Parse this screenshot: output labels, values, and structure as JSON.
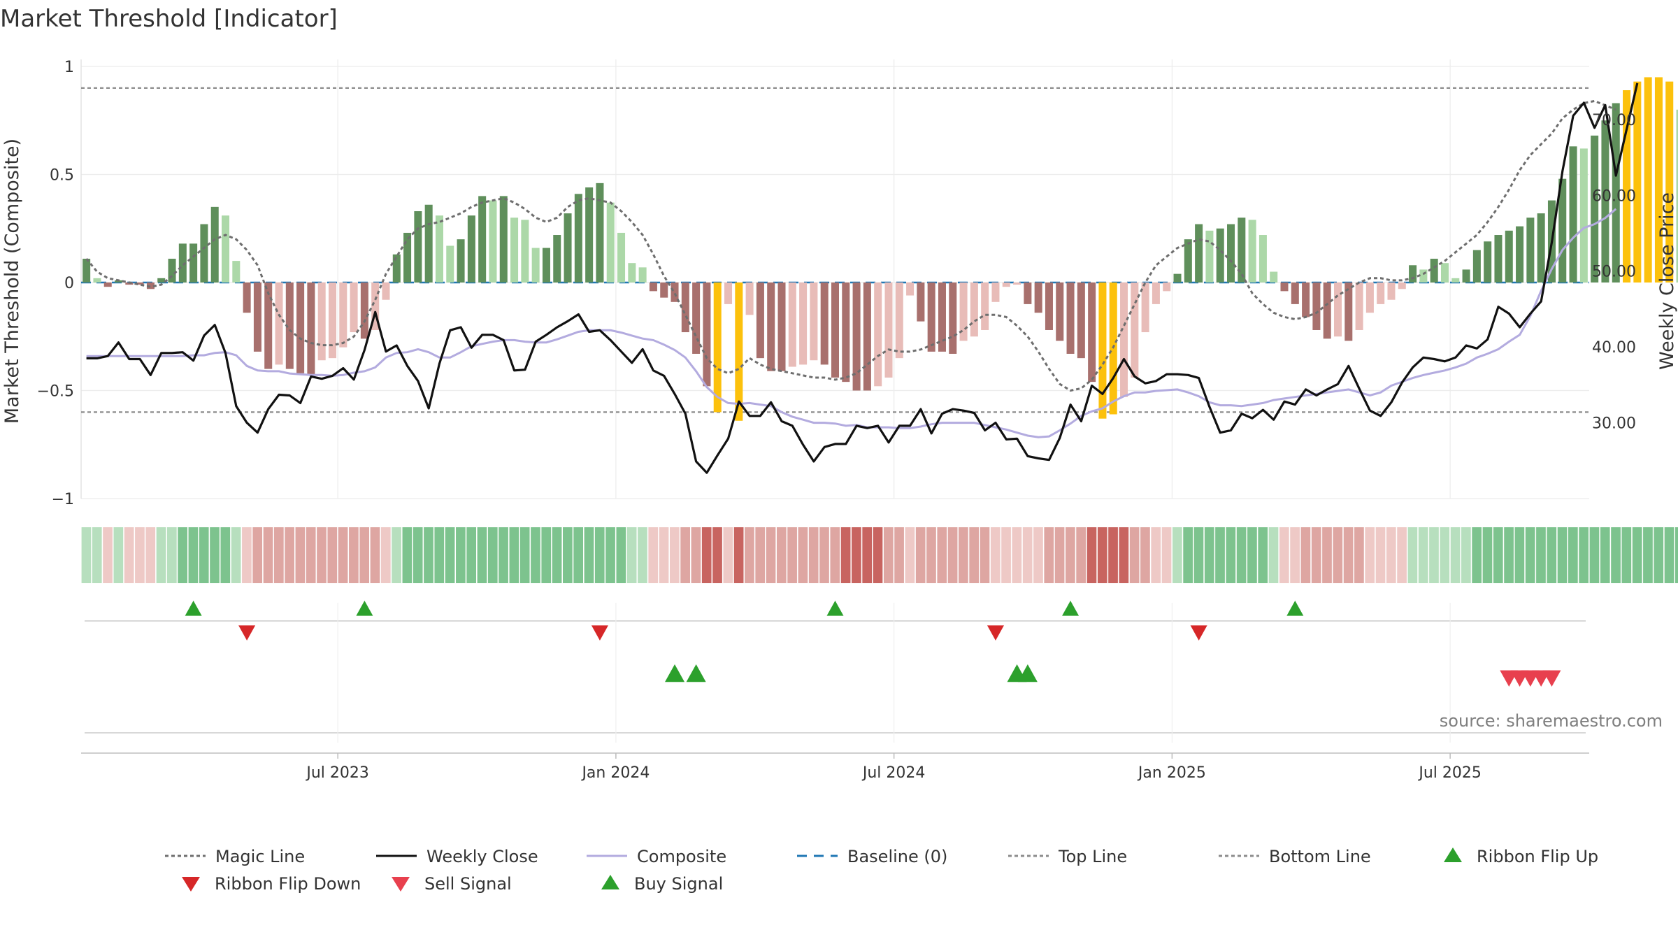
{
  "chart_data": {
    "type": "bar",
    "title": "Market Threshold [Indicator]",
    "ylabel_left": "Market Threshold (Composite)",
    "ylabel_right": "Weekly Close Price",
    "source": "source: sharemaestro.com",
    "left_axis": {
      "ylim": [
        -1,
        1
      ],
      "ticks": [
        {
          "v": 1,
          "label": "1"
        },
        {
          "v": 0.5,
          "label": "0.5"
        },
        {
          "v": 0,
          "label": "0"
        },
        {
          "v": -0.5,
          "label": "−0.5"
        },
        {
          "v": -1,
          "label": "−1"
        }
      ]
    },
    "right_axis": {
      "ylim": [
        20,
        77
      ],
      "ticks": [
        {
          "v": 70,
          "label": "70.00"
        },
        {
          "v": 60,
          "label": "60.00"
        },
        {
          "v": 50,
          "label": "50.00"
        },
        {
          "v": 40,
          "label": "40.00"
        },
        {
          "v": 30,
          "label": "30.00"
        }
      ]
    },
    "x_ticks": [
      "Jul 2023",
      "Jan 2024",
      "Jul 2024",
      "Jan 2025",
      "Jul 2025"
    ],
    "x_tick_weeks": [
      24,
      50,
      76,
      102,
      128
    ],
    "weeks": 141,
    "top_line": 0.9,
    "bottom_line": -0.6,
    "baseline": 0,
    "composite_values": [
      0.11,
      0.02,
      -0.02,
      0.01,
      -0.01,
      -0.01,
      -0.03,
      0.02,
      0.11,
      0.18,
      0.18,
      0.27,
      0.35,
      0.31,
      0.1,
      -0.14,
      -0.32,
      -0.4,
      -0.38,
      -0.4,
      -0.42,
      -0.43,
      -0.36,
      -0.35,
      -0.3,
      -0.23,
      -0.26,
      -0.22,
      -0.08,
      0.13,
      0.23,
      0.33,
      0.36,
      0.31,
      0.17,
      0.2,
      0.31,
      0.4,
      0.38,
      0.4,
      0.3,
      0.29,
      0.16,
      0.16,
      0.22,
      0.32,
      0.41,
      0.44,
      0.46,
      0.37,
      0.23,
      0.09,
      0.07,
      -0.04,
      -0.07,
      -0.09,
      -0.23,
      -0.33,
      -0.48,
      -0.6,
      -0.1,
      -0.64,
      -0.15,
      -0.35,
      -0.41,
      -0.41,
      -0.39,
      -0.38,
      -0.36,
      -0.38,
      -0.44,
      -0.46,
      -0.5,
      -0.5,
      -0.48,
      -0.44,
      -0.35,
      -0.06,
      -0.18,
      -0.32,
      -0.32,
      -0.33,
      -0.27,
      -0.25,
      -0.22,
      -0.09,
      -0.02,
      -0.01,
      -0.1,
      -0.14,
      -0.22,
      -0.27,
      -0.33,
      -0.35,
      -0.46,
      -0.63,
      -0.61,
      -0.53,
      -0.44,
      -0.23,
      -0.1,
      -0.04,
      0.04,
      0.2,
      0.27,
      0.24,
      0.25,
      0.27,
      0.3,
      0.29,
      0.22,
      0.05,
      -0.04,
      -0.1,
      -0.16,
      -0.22,
      -0.26,
      -0.25,
      -0.27,
      -0.22,
      -0.14,
      -0.1,
      -0.08,
      -0.03,
      0.08,
      0.06,
      0.11,
      0.09,
      0.02,
      0.06,
      0.15,
      0.19,
      0.22,
      0.24,
      0.26,
      0.3,
      0.32,
      0.38,
      0.48,
      0.63,
      0.62,
      0.68,
      0.75,
      0.83,
      0.89,
      0.93,
      0.95,
      0.95,
      0.93,
      0.8,
      0.73
    ],
    "weekly_close": [
      38.5,
      38.5,
      38.8,
      40.6,
      38.4,
      38.4,
      36.3,
      39.2,
      39.2,
      39.3,
      38.2,
      41.5,
      42.9,
      39.2,
      32.2,
      30.0,
      28.7,
      31.8,
      33.7,
      33.6,
      32.6,
      36.1,
      35.8,
      36.2,
      37.2,
      35.7,
      39.6,
      44.6,
      39.4,
      40.2,
      37.5,
      35.5,
      31.9,
      37.8,
      42.2,
      42.6,
      39.9,
      41.6,
      41.6,
      40.9,
      36.9,
      37.0,
      40.7,
      41.6,
      42.6,
      43.4,
      44.3,
      42.0,
      42.2,
      40.9,
      39.4,
      37.9,
      39.7,
      36.9,
      36.2,
      33.8,
      31.2,
      24.9,
      23.4,
      25.7,
      27.9,
      32.8,
      30.9,
      30.9,
      32.7,
      30.2,
      29.6,
      27.1,
      24.9,
      26.8,
      27.2,
      27.2,
      29.6,
      29.3,
      29.6,
      27.4,
      29.6,
      29.6,
      31.8,
      28.6,
      31.2,
      31.8,
      31.6,
      31.3,
      29.0,
      30.0,
      27.8,
      27.9,
      25.6,
      25.3,
      25.1,
      28.0,
      32.4,
      30.2,
      34.9,
      33.8,
      35.9,
      38.4,
      36.1,
      35.2,
      35.5,
      36.4,
      36.4,
      36.3,
      35.9,
      32.1,
      28.7,
      29.0,
      31.2,
      30.6,
      31.7,
      30.4,
      32.8,
      32.4,
      34.4,
      33.6,
      34.4,
      35.1,
      37.5,
      34.5,
      31.6,
      30.9,
      32.7,
      35.3,
      37.3,
      38.6,
      38.4,
      38.1,
      38.6,
      40.2,
      39.8,
      41.0,
      45.3,
      44.4,
      42.6,
      44.4,
      46.0,
      53.8,
      63.2,
      70.5,
      72.2,
      68.9,
      71.9,
      62.6,
      68.7,
      74.8
    ],
    "composite_line_price": [
      38.8,
      38.8,
      38.8,
      38.8,
      38.8,
      38.8,
      38.8,
      38.8,
      38.8,
      38.8,
      38.9,
      38.9,
      39.2,
      39.3,
      38.9,
      37.5,
      36.9,
      36.8,
      36.8,
      36.5,
      36.4,
      36.3,
      36.3,
      36.2,
      36.3,
      36.6,
      36.8,
      37.3,
      38.6,
      39.2,
      39.3,
      39.7,
      39.3,
      38.6,
      38.6,
      39.3,
      40.1,
      40.4,
      40.7,
      40.9,
      40.9,
      40.7,
      40.6,
      40.6,
      41.0,
      41.5,
      42.0,
      42.2,
      42.2,
      42.2,
      41.9,
      41.5,
      41.1,
      40.9,
      40.3,
      39.6,
      38.6,
      36.8,
      34.7,
      33.4,
      32.6,
      32.5,
      32.6,
      32.4,
      32.2,
      31.4,
      30.8,
      30.4,
      30.0,
      30.0,
      29.9,
      29.6,
      29.7,
      29.4,
      29.4,
      29.4,
      29.3,
      29.3,
      29.5,
      29.8,
      30.0,
      30.0,
      30.0,
      30.0,
      29.7,
      29.4,
      29.1,
      28.7,
      28.3,
      28.1,
      28.2,
      29.0,
      29.9,
      30.9,
      31.5,
      31.9,
      32.8,
      33.5,
      34.0,
      34.0,
      34.2,
      34.3,
      34.4,
      34.0,
      33.5,
      32.7,
      32.3,
      32.3,
      32.2,
      32.4,
      32.6,
      33.0,
      33.2,
      33.4,
      33.6,
      33.8,
      34.0,
      34.2,
      34.4,
      34.0,
      33.6,
      34.0,
      34.9,
      35.4,
      35.9,
      36.3,
      36.6,
      36.9,
      37.3,
      37.8,
      38.6,
      39.1,
      39.7,
      40.7,
      41.6,
      44.1,
      47.4,
      50.3,
      52.8,
      54.4,
      55.7,
      56.2,
      57.0,
      58.2
    ],
    "magic_line_values": [
      0.11,
      0.05,
      0.02,
      0.01,
      0,
      -0.01,
      -0.02,
      -0.01,
      0.03,
      0.08,
      0.12,
      0.16,
      0.2,
      0.22,
      0.2,
      0.15,
      0.08,
      -0.05,
      -0.15,
      -0.22,
      -0.26,
      -0.28,
      -0.29,
      -0.29,
      -0.28,
      -0.25,
      -0.18,
      -0.08,
      0.04,
      0.12,
      0.2,
      0.25,
      0.27,
      0.28,
      0.3,
      0.32,
      0.35,
      0.37,
      0.38,
      0.39,
      0.37,
      0.34,
      0.3,
      0.28,
      0.3,
      0.35,
      0.38,
      0.39,
      0.38,
      0.37,
      0.33,
      0.28,
      0.22,
      0.13,
      0.03,
      -0.05,
      -0.15,
      -0.25,
      -0.35,
      -0.4,
      -0.42,
      -0.4,
      -0.35,
      -0.38,
      -0.4,
      -0.41,
      -0.42,
      -0.43,
      -0.44,
      -0.44,
      -0.45,
      -0.44,
      -0.42,
      -0.38,
      -0.34,
      -0.31,
      -0.32,
      -0.32,
      -0.31,
      -0.29,
      -0.27,
      -0.25,
      -0.22,
      -0.18,
      -0.15,
      -0.15,
      -0.16,
      -0.2,
      -0.25,
      -0.32,
      -0.4,
      -0.47,
      -0.5,
      -0.49,
      -0.45,
      -0.38,
      -0.3,
      -0.2,
      -0.1,
      0,
      0.08,
      0.12,
      0.16,
      0.18,
      0.2,
      0.19,
      0.15,
      0.1,
      0.04,
      -0.05,
      -0.1,
      -0.14,
      -0.16,
      -0.17,
      -0.16,
      -0.14,
      -0.1,
      -0.06,
      -0.03,
      0,
      0.02,
      0.02,
      0.01,
      0.01,
      0.02,
      0.04,
      0.07,
      0.1,
      0.14,
      0.18,
      0.22,
      0.28,
      0.35,
      0.43,
      0.52,
      0.59,
      0.64,
      0.69,
      0.76,
      0.8,
      0.83,
      0.84,
      0.82,
      0.8
    ]
  },
  "ribbon_flip_up_weeks": [
    10,
    26,
    70,
    92,
    113
  ],
  "ribbon_flip_down_weeks": [
    15,
    48,
    85,
    104
  ],
  "buy_signal_weeks": [
    55,
    57,
    87,
    88
  ],
  "sell_signal_weeks": [
    133,
    134,
    135,
    136,
    137
  ],
  "legend": [
    {
      "label": "Magic Line",
      "kind": "dotted-line",
      "color": "#6e6e6e"
    },
    {
      "label": "Weekly Close",
      "kind": "solid-line",
      "color": "#111111"
    },
    {
      "label": "Composite",
      "kind": "solid-line",
      "color": "#b3abdf"
    },
    {
      "label": "Baseline (0)",
      "kind": "dashed-line",
      "color": "#1f77b4"
    },
    {
      "label": "Top Line",
      "kind": "dotted-line",
      "color": "#8c8c8c"
    },
    {
      "label": "Bottom Line",
      "kind": "dotted-line",
      "color": "#8c8c8c"
    },
    {
      "label": "Ribbon Flip Up",
      "kind": "up-triangle",
      "color": "#2ca02c"
    },
    {
      "label": "Ribbon Flip Down",
      "kind": "down-triangle",
      "color": "#d62728"
    },
    {
      "label": "Sell Signal",
      "kind": "down-triangle",
      "color": "#e8404e"
    },
    {
      "label": "Buy Signal",
      "kind": "up-triangle",
      "color": "#2ca02c"
    }
  ],
  "colors": {
    "bar_pos_strong": "#5f8f5b",
    "bar_pos_light": "#acd8a8",
    "bar_neg_strong": "#a8706d",
    "bar_neg_light": "#e8bcb8",
    "bar_extreme": "#fcc10c",
    "grid": "#ececec"
  }
}
